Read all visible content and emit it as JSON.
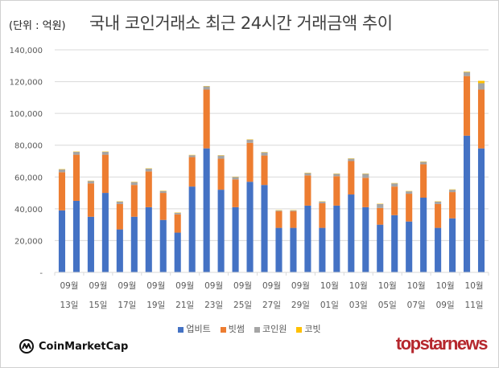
{
  "header": {
    "unit_label": "(단위 : 억원)",
    "title": "국내 코인거래소 최근 24시간 거래금액 추이"
  },
  "footer": {
    "source_brand": "CoinMarketCap",
    "publisher_brand": "topstarnews"
  },
  "chart_data": {
    "type": "bar",
    "stacked": true,
    "title": "국내 코인거래소 최근 24시간 거래금액 추이",
    "ylabel": "(단위 : 억원)",
    "xlabel": "",
    "ylim": [
      0,
      140000
    ],
    "yticks": [
      0,
      20000,
      40000,
      60000,
      80000,
      100000,
      120000,
      140000
    ],
    "ytick_labels": [
      "-",
      "20,000",
      "40,000",
      "60,000",
      "80,000",
      "100,000",
      "120,000",
      "140,000"
    ],
    "grid": true,
    "legend_position": "bottom",
    "categories": [
      "09/13",
      "09/14",
      "09/15",
      "09/16",
      "09/17",
      "09/18",
      "09/19",
      "09/20",
      "09/21",
      "09/22",
      "09/23",
      "09/24",
      "09/25",
      "09/26",
      "09/27",
      "09/28",
      "09/29",
      "09/30",
      "10/01",
      "10/02",
      "10/03",
      "10/04",
      "10/05",
      "10/06",
      "10/07",
      "10/08",
      "10/09",
      "10/10",
      "10/11",
      "10/12"
    ],
    "xtick_labels": [
      {
        "month": "09월",
        "day": "13일"
      },
      {
        "month": "09월",
        "day": "15일"
      },
      {
        "month": "09월",
        "day": "17일"
      },
      {
        "month": "09월",
        "day": "19일"
      },
      {
        "month": "09월",
        "day": "21일"
      },
      {
        "month": "09월",
        "day": "23일"
      },
      {
        "month": "09월",
        "day": "25일"
      },
      {
        "month": "09월",
        "day": "27일"
      },
      {
        "month": "09월",
        "day": "29일"
      },
      {
        "month": "10월",
        "day": "01일"
      },
      {
        "month": "10월",
        "day": "03일"
      },
      {
        "month": "10월",
        "day": "05일"
      },
      {
        "month": "10월",
        "day": "07일"
      },
      {
        "month": "10월",
        "day": "09일"
      },
      {
        "month": "10월",
        "day": "11일"
      }
    ],
    "series": [
      {
        "name": "업비트",
        "color": "#4472C4",
        "values": [
          39000,
          45000,
          35000,
          50000,
          27000,
          35000,
          41000,
          33000,
          25000,
          54000,
          78000,
          52000,
          41000,
          57000,
          55000,
          28000,
          28000,
          42000,
          28000,
          42000,
          49000,
          41000,
          30000,
          36000,
          32000,
          47000,
          28000,
          34000,
          86000,
          78000
        ]
      },
      {
        "name": "빗썸",
        "color": "#ED7D31",
        "values": [
          24000,
          29000,
          21000,
          24000,
          16000,
          20000,
          22500,
          17000,
          11500,
          18500,
          37000,
          19500,
          17500,
          24500,
          18500,
          10500,
          10500,
          19000,
          15500,
          18500,
          21000,
          18500,
          10500,
          18000,
          17500,
          21000,
          15000,
          16500,
          37500,
          37000
        ]
      },
      {
        "name": "코인원",
        "color": "#A5A5A5",
        "values": [
          1800,
          1800,
          1500,
          1800,
          1500,
          1800,
          1800,
          1200,
          1000,
          1200,
          2000,
          2000,
          1500,
          2000,
          2000,
          500,
          500,
          1500,
          1000,
          1500,
          1500,
          2500,
          2500,
          2000,
          1500,
          1500,
          1500,
          1500,
          2500,
          4000
        ]
      },
      {
        "name": "코빗",
        "color": "#FFC000",
        "values": [
          200,
          200,
          200,
          200,
          200,
          200,
          200,
          200,
          200,
          200,
          200,
          200,
          200,
          200,
          200,
          200,
          200,
          200,
          200,
          200,
          200,
          200,
          200,
          200,
          200,
          200,
          200,
          200,
          300,
          1500
        ]
      }
    ]
  }
}
